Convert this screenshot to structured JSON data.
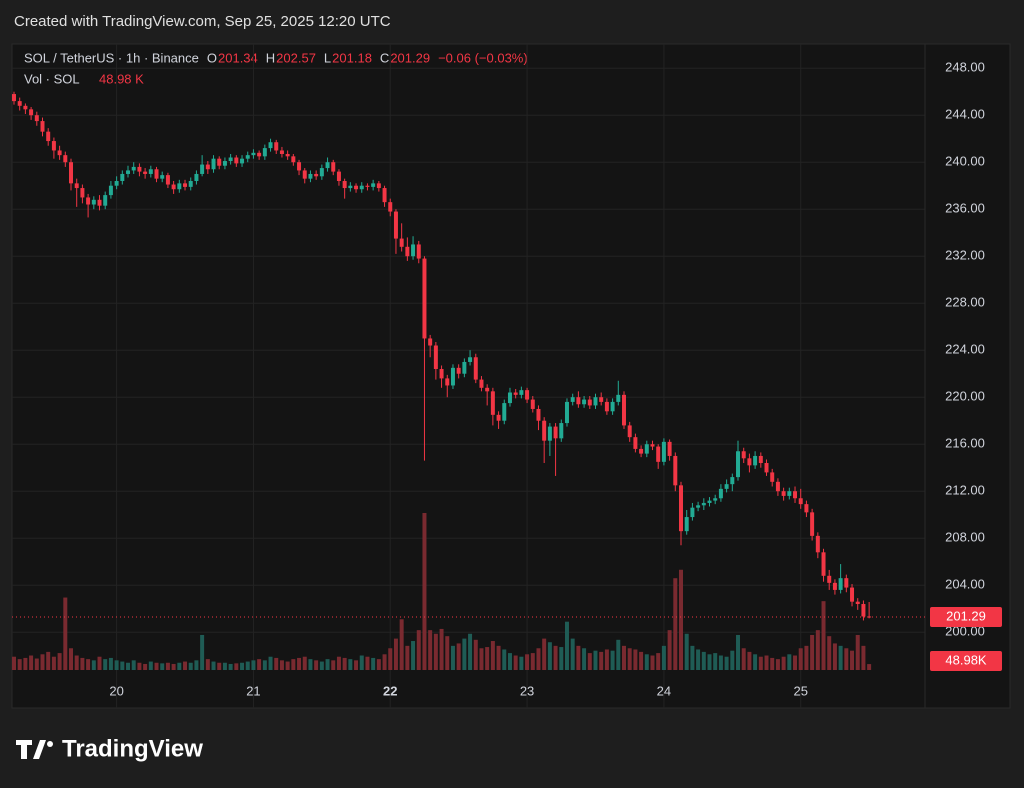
{
  "chart_data": {
    "type": "candlestick",
    "watermark": "Created with TradingView.com, Sep 25, 2025 12:20 UTC",
    "symbol": "SOL / TetherUS · 1h · Binance",
    "ohlc_header": [
      {
        "key": "O",
        "value": "201.34"
      },
      {
        "key": "H",
        "value": "202.57"
      },
      {
        "key": "L",
        "value": "201.18"
      },
      {
        "key": "C",
        "value": "201.29"
      }
    ],
    "change": "−0.06 (−0.03%)",
    "volume_title": "Vol · SOL",
    "volume_legend_value": "48.98 K",
    "volume_axis_label": "48.98K",
    "last_price_label": "201.29",
    "last_price": 201.29,
    "brand": "TradingView",
    "up_color": "#22ab94",
    "down_color": "#f23645",
    "volume_up_color": "#1f5c55",
    "volume_down_color": "#7a2a30",
    "grid": true,
    "ylim": [
      193.55,
      250.06
    ],
    "yticks": [
      {
        "value": 200,
        "label": "200.00"
      },
      {
        "value": 204,
        "label": "204.00"
      },
      {
        "value": 208,
        "label": "208.00"
      },
      {
        "value": 212,
        "label": "212.00"
      },
      {
        "value": 216,
        "label": "216.00"
      },
      {
        "value": 220,
        "label": "220.00"
      },
      {
        "value": 224,
        "label": "224.00"
      },
      {
        "value": 228,
        "label": "228.00"
      },
      {
        "value": 232,
        "label": "232.00"
      },
      {
        "value": 236,
        "label": "236.00"
      },
      {
        "value": 240,
        "label": "240.00"
      },
      {
        "value": 244,
        "label": "244.00"
      },
      {
        "value": 248,
        "label": "248.00"
      }
    ],
    "xlim": [
      -0.35,
      159.8
    ],
    "xticks": [
      {
        "value": 18,
        "label": "20"
      },
      {
        "value": 42,
        "label": "21"
      },
      {
        "value": 66,
        "label": "22",
        "bold": true
      },
      {
        "value": 90,
        "label": "23"
      },
      {
        "value": 114,
        "label": "24"
      },
      {
        "value": 138,
        "label": "25"
      }
    ],
    "vlim": [
      0,
      1300
    ],
    "ohlc": [
      [
        245.8,
        246.0,
        244.9,
        245.2
      ],
      [
        245.2,
        245.5,
        244.4,
        244.8
      ],
      [
        244.8,
        245.0,
        244.1,
        244.5
      ],
      [
        244.5,
        244.7,
        243.6,
        244.0
      ],
      [
        244.0,
        244.3,
        243.1,
        243.5
      ],
      [
        243.5,
        243.8,
        242.2,
        242.6
      ],
      [
        242.6,
        242.9,
        241.4,
        241.8
      ],
      [
        241.8,
        242.1,
        240.3,
        241.0
      ],
      [
        241.0,
        241.4,
        240.2,
        240.6
      ],
      [
        240.6,
        240.9,
        239.6,
        240.0
      ],
      [
        240.0,
        240.3,
        237.6,
        238.2
      ],
      [
        238.2,
        238.6,
        236.2,
        237.8
      ],
      [
        237.8,
        238.1,
        236.5,
        237.0
      ],
      [
        237.0,
        237.3,
        235.3,
        236.4
      ],
      [
        236.4,
        237.1,
        236.0,
        236.8
      ],
      [
        236.8,
        237.2,
        235.9,
        236.3
      ],
      [
        236.3,
        237.5,
        236.0,
        237.2
      ],
      [
        237.2,
        238.4,
        236.9,
        238.0
      ],
      [
        238.0,
        238.8,
        237.7,
        238.4
      ],
      [
        238.4,
        239.3,
        238.1,
        239.0
      ],
      [
        239.0,
        239.7,
        238.7,
        239.3
      ],
      [
        239.3,
        240.0,
        239.0,
        239.6
      ],
      [
        239.6,
        239.9,
        238.8,
        239.2
      ],
      [
        239.2,
        239.5,
        238.6,
        239.0
      ],
      [
        239.0,
        239.7,
        238.7,
        239.4
      ],
      [
        239.4,
        239.6,
        238.3,
        238.6
      ],
      [
        238.6,
        239.2,
        238.3,
        238.9
      ],
      [
        238.9,
        239.1,
        237.8,
        238.1
      ],
      [
        238.1,
        238.4,
        237.3,
        237.7
      ],
      [
        237.7,
        238.5,
        237.4,
        238.2
      ],
      [
        238.2,
        238.5,
        237.6,
        237.9
      ],
      [
        237.9,
        238.7,
        237.6,
        238.4
      ],
      [
        238.4,
        239.3,
        238.1,
        239.0
      ],
      [
        239.0,
        240.6,
        238.8,
        239.8
      ],
      [
        239.8,
        240.1,
        239.0,
        239.4
      ],
      [
        239.4,
        240.6,
        239.1,
        240.3
      ],
      [
        240.3,
        240.5,
        239.4,
        239.7
      ],
      [
        239.7,
        240.4,
        239.4,
        240.1
      ],
      [
        240.1,
        240.7,
        239.8,
        240.4
      ],
      [
        240.4,
        240.6,
        239.6,
        239.9
      ],
      [
        239.9,
        240.6,
        239.6,
        240.3
      ],
      [
        240.3,
        240.9,
        240.0,
        240.6
      ],
      [
        240.6,
        241.1,
        240.3,
        240.8
      ],
      [
        240.8,
        241.0,
        240.2,
        240.5
      ],
      [
        240.5,
        241.5,
        240.2,
        241.2
      ],
      [
        241.2,
        242.0,
        240.9,
        241.7
      ],
      [
        241.7,
        241.9,
        240.7,
        241.0
      ],
      [
        241.0,
        241.3,
        240.4,
        240.7
      ],
      [
        240.7,
        241.0,
        240.2,
        240.5
      ],
      [
        240.5,
        240.7,
        239.7,
        240.0
      ],
      [
        240.0,
        240.2,
        238.9,
        239.3
      ],
      [
        239.3,
        239.5,
        238.2,
        238.6
      ],
      [
        238.6,
        239.3,
        238.3,
        239.0
      ],
      [
        239.0,
        239.3,
        238.5,
        238.8
      ],
      [
        238.8,
        239.8,
        238.5,
        239.5
      ],
      [
        239.5,
        240.4,
        239.2,
        240.0
      ],
      [
        240.0,
        240.2,
        238.9,
        239.2
      ],
      [
        239.2,
        239.4,
        238.0,
        238.4
      ],
      [
        238.4,
        238.6,
        236.9,
        237.8
      ],
      [
        237.8,
        238.3,
        237.5,
        238.0
      ],
      [
        238.0,
        238.2,
        237.4,
        237.7
      ],
      [
        237.7,
        238.3,
        237.4,
        238.0
      ],
      [
        238.0,
        238.2,
        237.6,
        237.9
      ],
      [
        237.9,
        238.5,
        237.6,
        238.2
      ],
      [
        238.2,
        238.4,
        237.5,
        237.8
      ],
      [
        237.8,
        238.0,
        236.2,
        236.6
      ],
      [
        236.6,
        236.9,
        235.4,
        235.8
      ],
      [
        235.8,
        236.0,
        232.2,
        233.5
      ],
      [
        233.5,
        234.8,
        232.4,
        232.8
      ],
      [
        232.8,
        233.6,
        231.6,
        232.0
      ],
      [
        232.0,
        233.7,
        231.7,
        233.0
      ],
      [
        233.0,
        233.3,
        231.4,
        231.8
      ],
      [
        231.8,
        232.0,
        214.6,
        225.0
      ],
      [
        225.0,
        225.3,
        223.4,
        224.4
      ],
      [
        224.4,
        224.7,
        221.5,
        222.4
      ],
      [
        222.4,
        222.7,
        220.8,
        221.6
      ],
      [
        221.6,
        221.9,
        220.0,
        221.0
      ],
      [
        221.0,
        222.8,
        220.7,
        222.5
      ],
      [
        222.5,
        222.8,
        221.6,
        222.0
      ],
      [
        222.0,
        223.3,
        221.7,
        223.0
      ],
      [
        223.0,
        224.0,
        222.7,
        223.4
      ],
      [
        223.4,
        223.7,
        221.2,
        221.5
      ],
      [
        221.5,
        221.8,
        220.5,
        220.8
      ],
      [
        220.8,
        221.1,
        219.3,
        220.5
      ],
      [
        220.5,
        220.8,
        217.6,
        218.5
      ],
      [
        218.5,
        218.8,
        217.3,
        218.0
      ],
      [
        218.0,
        219.8,
        217.7,
        219.5
      ],
      [
        219.5,
        220.8,
        219.2,
        220.4
      ],
      [
        220.4,
        220.7,
        219.9,
        220.2
      ],
      [
        220.2,
        220.9,
        219.9,
        220.6
      ],
      [
        220.6,
        220.8,
        219.5,
        219.8
      ],
      [
        219.8,
        220.1,
        218.7,
        219.0
      ],
      [
        219.0,
        219.3,
        217.2,
        218.0
      ],
      [
        218.0,
        218.3,
        214.4,
        216.3
      ],
      [
        216.3,
        217.8,
        215.0,
        217.5
      ],
      [
        217.5,
        217.8,
        213.3,
        216.5
      ],
      [
        216.5,
        218.1,
        216.2,
        217.8
      ],
      [
        217.8,
        219.9,
        217.5,
        219.6
      ],
      [
        219.6,
        220.3,
        219.3,
        220.0
      ],
      [
        220.0,
        220.5,
        219.1,
        219.4
      ],
      [
        219.4,
        220.1,
        219.1,
        219.8
      ],
      [
        219.8,
        220.1,
        219.0,
        219.3
      ],
      [
        219.3,
        220.3,
        219.0,
        220.0
      ],
      [
        220.0,
        220.4,
        219.3,
        219.6
      ],
      [
        219.6,
        219.9,
        218.5,
        218.8
      ],
      [
        218.8,
        219.9,
        218.5,
        219.6
      ],
      [
        219.6,
        221.4,
        219.3,
        220.2
      ],
      [
        220.2,
        220.5,
        217.3,
        217.6
      ],
      [
        217.6,
        217.9,
        216.2,
        216.6
      ],
      [
        216.6,
        216.9,
        215.3,
        215.6
      ],
      [
        215.6,
        215.9,
        214.9,
        215.2
      ],
      [
        215.2,
        216.3,
        214.9,
        216.0
      ],
      [
        216.0,
        216.3,
        215.5,
        215.8
      ],
      [
        215.8,
        216.0,
        213.9,
        214.5
      ],
      [
        214.5,
        216.5,
        214.2,
        216.2
      ],
      [
        216.2,
        216.4,
        214.6,
        215.0
      ],
      [
        215.0,
        215.3,
        212.0,
        212.5
      ],
      [
        212.5,
        212.8,
        207.4,
        208.6
      ],
      [
        208.6,
        210.4,
        208.3,
        209.8
      ],
      [
        209.8,
        211.0,
        209.5,
        210.6
      ],
      [
        210.6,
        211.1,
        210.3,
        210.8
      ],
      [
        210.8,
        211.4,
        210.4,
        211.0
      ],
      [
        211.0,
        211.5,
        210.7,
        211.2
      ],
      [
        211.2,
        211.7,
        210.9,
        211.4
      ],
      [
        211.4,
        212.6,
        211.1,
        212.2
      ],
      [
        212.2,
        213.0,
        211.9,
        212.6
      ],
      [
        212.6,
        213.5,
        212.0,
        213.2
      ],
      [
        213.2,
        216.3,
        212.9,
        215.4
      ],
      [
        215.4,
        215.7,
        214.4,
        214.8
      ],
      [
        214.8,
        215.2,
        213.6,
        214.2
      ],
      [
        214.2,
        215.4,
        213.9,
        215.0
      ],
      [
        215.0,
        215.3,
        214.0,
        214.4
      ],
      [
        214.4,
        214.7,
        213.3,
        213.6
      ],
      [
        213.6,
        213.9,
        212.4,
        212.8
      ],
      [
        212.8,
        213.1,
        211.6,
        212.0
      ],
      [
        212.0,
        212.3,
        211.2,
        211.6
      ],
      [
        211.6,
        212.3,
        211.3,
        212.0
      ],
      [
        212.0,
        212.4,
        211.0,
        211.4
      ],
      [
        211.4,
        212.2,
        210.5,
        210.9
      ],
      [
        210.9,
        211.2,
        209.8,
        210.2
      ],
      [
        210.2,
        210.5,
        207.8,
        208.2
      ],
      [
        208.2,
        208.5,
        206.3,
        206.8
      ],
      [
        206.8,
        207.1,
        204.3,
        204.8
      ],
      [
        204.8,
        205.3,
        203.6,
        204.2
      ],
      [
        204.2,
        204.5,
        203.2,
        203.6
      ],
      [
        203.6,
        205.8,
        203.3,
        204.6
      ],
      [
        204.6,
        204.9,
        203.4,
        203.8
      ],
      [
        203.8,
        204.1,
        202.2,
        202.6
      ],
      [
        202.6,
        202.9,
        201.9,
        202.4
      ],
      [
        202.4,
        202.7,
        201.0,
        201.34
      ],
      [
        201.34,
        202.57,
        201.18,
        201.29
      ]
    ],
    "volume": [
      110,
      90,
      100,
      120,
      95,
      130,
      150,
      110,
      140,
      600,
      180,
      120,
      100,
      90,
      80,
      110,
      90,
      100,
      80,
      70,
      60,
      80,
      60,
      50,
      70,
      60,
      55,
      60,
      50,
      60,
      70,
      60,
      80,
      290,
      90,
      70,
      60,
      60,
      50,
      55,
      60,
      70,
      80,
      90,
      80,
      110,
      100,
      80,
      70,
      90,
      100,
      110,
      90,
      80,
      70,
      90,
      80,
      110,
      100,
      90,
      80,
      120,
      110,
      100,
      90,
      130,
      180,
      260,
      420,
      200,
      240,
      330,
      1300,
      330,
      300,
      340,
      280,
      200,
      220,
      260,
      300,
      250,
      180,
      190,
      240,
      200,
      170,
      140,
      120,
      110,
      130,
      140,
      180,
      260,
      230,
      200,
      190,
      400,
      260,
      200,
      180,
      140,
      160,
      150,
      170,
      160,
      250,
      200,
      180,
      170,
      150,
      130,
      120,
      140,
      200,
      330,
      760,
      830,
      300,
      200,
      170,
      150,
      130,
      140,
      120,
      110,
      160,
      290,
      180,
      150,
      130,
      110,
      120,
      100,
      90,
      110,
      130,
      120,
      180,
      200,
      290,
      330,
      570,
      280,
      220,
      200,
      180,
      160,
      290,
      200,
      48.98
    ]
  }
}
